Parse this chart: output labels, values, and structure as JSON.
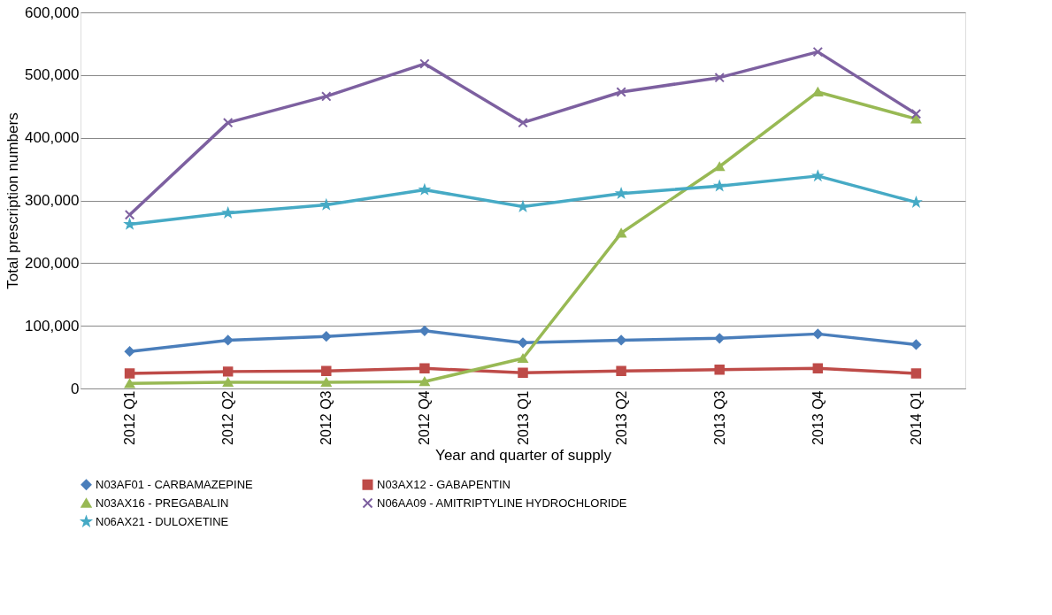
{
  "chart_data": {
    "type": "line",
    "xlabel": "Year and quarter of supply",
    "ylabel": "Total prescription numbers",
    "categories": [
      "2012 Q1",
      "2012 Q2",
      "2012 Q3",
      "2012 Q4",
      "2013 Q1",
      "2013 Q2",
      "2013 Q3",
      "2013 Q4",
      "2014 Q1"
    ],
    "series": [
      {
        "name": "N03AF01 - CARBAMAZEPINE",
        "color": "#4a7ebb",
        "marker": "diamond",
        "values": [
          59000,
          77000,
          83000,
          92000,
          73000,
          77000,
          80000,
          87000,
          70000
        ]
      },
      {
        "name": "N03AX12 - GABAPENTIN",
        "color": "#be4b48",
        "marker": "square",
        "values": [
          24000,
          27000,
          28000,
          32000,
          25000,
          28000,
          30000,
          32000,
          24000
        ]
      },
      {
        "name": "N03AX16 - PREGABALIN",
        "color": "#98b954",
        "marker": "triangle",
        "values": [
          8000,
          10000,
          10000,
          11000,
          48000,
          248000,
          354000,
          473000,
          430000
        ]
      },
      {
        "name": "N06AA09 - AMITRIPTYLINE HYDROCHLORIDE",
        "color": "#7d60a0",
        "marker": "cross",
        "values": [
          277000,
          424000,
          466000,
          518000,
          424000,
          473000,
          496000,
          537000,
          438000
        ]
      },
      {
        "name": "N06AX21 - DULOXETINE",
        "color": "#46aac5",
        "marker": "star",
        "values": [
          262000,
          280000,
          293000,
          317000,
          290000,
          311000,
          323000,
          339000,
          297000
        ]
      }
    ],
    "ylim": [
      0,
      600000
    ],
    "yticks": [
      {
        "value": 0,
        "label": "0"
      },
      {
        "value": 100000,
        "label": "100,000"
      },
      {
        "value": 200000,
        "label": "200,000"
      },
      {
        "value": 300000,
        "label": "300,000"
      },
      {
        "value": 400000,
        "label": "400,000"
      },
      {
        "value": 500000,
        "label": "500,000"
      },
      {
        "value": 600000,
        "label": "600,000"
      }
    ],
    "grid": "y",
    "legend": "bottom",
    "line_style": "solid"
  }
}
